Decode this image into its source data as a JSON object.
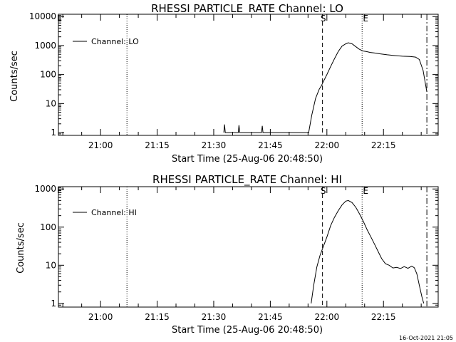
{
  "chart_data": [
    {
      "type": "line",
      "title": "RHESSI PARTICLE_RATE Channel: LO",
      "xlabel": "Start Time (25-Aug-06 20:48:50)",
      "ylabel": "Counts/sec",
      "y_scale": "log",
      "xlim": [
        "20:48:50",
        "22:29:30"
      ],
      "ylim": [
        0.8,
        12000
      ],
      "xticks": [
        "21:00",
        "21:15",
        "21:30",
        "21:45",
        "22:00",
        "22:15"
      ],
      "yticks": [
        "1",
        "10",
        "100",
        "1000",
        "10000"
      ],
      "legend": "top-left",
      "series": [
        {
          "name": "Channel: LO",
          "x": [
            "21:32:40",
            "21:32:52",
            "21:33:04",
            "21:36:30",
            "21:36:42",
            "21:36:54",
            "21:42:40",
            "21:42:52",
            "21:43:04",
            "21:55:10",
            "21:56:00",
            "21:57:00",
            "21:58:00",
            "21:58:30",
            "21:59:00",
            "22:00:00",
            "22:01:00",
            "22:02:00",
            "22:03:00",
            "22:04:00",
            "22:05:00",
            "22:05:40",
            "22:06:40",
            "22:07:30",
            "22:08:30",
            "22:09:30",
            "22:10:30",
            "22:11:30",
            "22:12:30",
            "22:14:00",
            "22:16:00",
            "22:18:00",
            "22:20:00",
            "22:22:00",
            "22:23:30",
            "22:24:30",
            "22:25:30",
            "22:26:30"
          ],
          "values": [
            1,
            1.9,
            1,
            1,
            1.8,
            1,
            1,
            1.7,
            1,
            1,
            4,
            15,
            32,
            40,
            55,
            100,
            190,
            350,
            620,
            950,
            1150,
            1250,
            1150,
            950,
            760,
            650,
            620,
            580,
            560,
            520,
            480,
            450,
            430,
            420,
            400,
            330,
            140,
            25
          ]
        }
      ],
      "annotations": {
        "dotted_line": "21:07:00",
        "S": "21:58:50",
        "E": "22:09:20",
        "dashdot_line": "22:26:30",
        "corner_mark": "E"
      }
    },
    {
      "type": "line",
      "title": "RHESSI PARTICLE_RATE Channel: HI",
      "xlabel": "Start Time (25-Aug-06 20:48:50)",
      "ylabel": "Counts/sec",
      "y_scale": "log",
      "xlim": [
        "20:48:50",
        "22:29:30"
      ],
      "ylim": [
        0.8,
        1150
      ],
      "xticks": [
        "21:00",
        "21:15",
        "21:30",
        "21:45",
        "22:00",
        "22:15"
      ],
      "yticks": [
        "1",
        "10",
        "100",
        "1000"
      ],
      "legend": "top-left",
      "series": [
        {
          "name": "Channel: HI",
          "x": [
            "21:55:50",
            "21:56:30",
            "21:57:20",
            "21:58:10",
            "21:59:00",
            "22:00:00",
            "22:01:00",
            "22:02:00",
            "22:03:00",
            "22:04:00",
            "22:05:00",
            "22:05:40",
            "22:06:40",
            "22:07:40",
            "22:08:40",
            "22:09:40",
            "22:10:40",
            "22:11:40",
            "22:12:40",
            "22:13:40",
            "22:14:30",
            "22:15:30",
            "22:16:30",
            "22:17:30",
            "22:18:30",
            "22:19:30",
            "22:20:30",
            "22:21:30",
            "22:22:30",
            "22:23:10",
            "22:23:50",
            "22:24:30",
            "22:25:10",
            "22:25:40"
          ],
          "values": [
            1,
            3,
            9,
            18,
            30,
            55,
            110,
            180,
            270,
            380,
            480,
            500,
            440,
            330,
            220,
            140,
            85,
            55,
            35,
            22,
            15,
            11,
            10,
            8.5,
            8.8,
            8.2,
            9.2,
            8.3,
            9.5,
            8.6,
            6,
            3,
            1.5,
            1
          ]
        }
      ],
      "annotations": {
        "dotted_line": "21:07:00",
        "S": "21:58:50",
        "E": "22:09:20",
        "dashdot_line": "22:26:30",
        "corner_mark": "E"
      }
    }
  ],
  "footer": "16-Oct-2021 21:05"
}
